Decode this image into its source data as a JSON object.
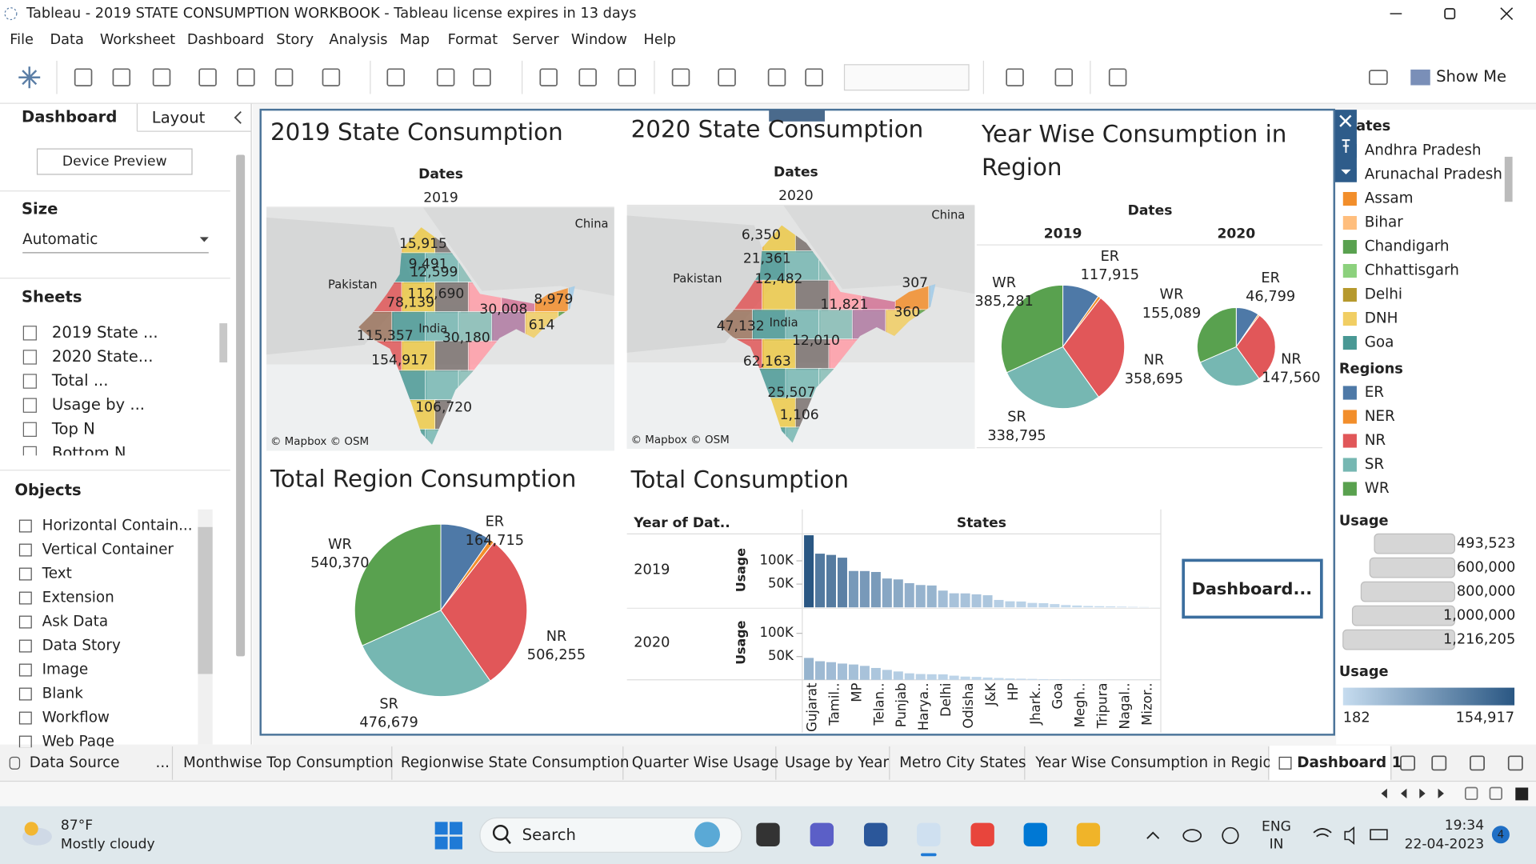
{
  "window": {
    "title": "Tableau - 2019 STATE CONSUMPTION WORKBOOK - Tableau license expires in 13 days"
  },
  "menu": [
    "File",
    "Data",
    "Worksheet",
    "Dashboard",
    "Story",
    "Analysis",
    "Map",
    "Format",
    "Server",
    "Window",
    "Help"
  ],
  "toolbar": {
    "show_me": "Show Me"
  },
  "side_panel": {
    "tabs": [
      "Dashboard",
      "Layout"
    ],
    "device_preview": "Device Preview",
    "size": {
      "heading": "Size",
      "value": "Automatic"
    },
    "sheets": {
      "heading": "Sheets",
      "items": [
        "2019 State ...",
        "2020 State...",
        "Total ...",
        "Usage by ...",
        "Top N",
        "Bottom N"
      ]
    },
    "objects": {
      "heading": "Objects",
      "items": [
        "Horizontal Contain...",
        "Vertical Container",
        "Text",
        "Extension",
        "Ask Data",
        "Data Story",
        "Image",
        "Blank",
        "Workflow",
        "Web Page"
      ]
    }
  },
  "dashboard": {
    "map_2019": {
      "title": "2019 State Consumption",
      "header": "Dates",
      "column": "2019",
      "places": [
        "China",
        "Pakistan",
        "India"
      ],
      "labels": [
        "15,915",
        "9,491",
        "12,599",
        "112,690",
        "78,139",
        "30,008",
        "8,979",
        "614",
        "115,357",
        "30,180",
        "154,917",
        "106,720"
      ],
      "attribution": "© Mapbox © OSM"
    },
    "map_2020": {
      "title": "2020 State Consumption",
      "header": "Dates",
      "column": "2020",
      "places": [
        "China",
        "Pakistan",
        "India"
      ],
      "labels": [
        "6,350",
        "21,361",
        "12,482",
        "307",
        "11,821",
        "47,132",
        "360",
        "12,010",
        "62,163",
        "25,507",
        "1,106"
      ],
      "attribution": "© Mapbox © OSM"
    },
    "year_wise": {
      "title_lines": [
        "Year Wise Consumption in",
        "Region"
      ],
      "header": "Dates",
      "pies": [
        {
          "year": "2019",
          "categories": [
            "ER",
            null,
            "NR",
            "SR",
            "WR"
          ],
          "values": [
            117915,
            9000,
            358695,
            338795,
            385281
          ],
          "value_labels": [
            "117,915",
            null,
            "358,695",
            "338,795",
            "385,281"
          ]
        },
        {
          "year": "2020",
          "categories": [
            "ER",
            null,
            "NR",
            null,
            "WR"
          ],
          "values": [
            46799,
            3000,
            147560,
            140000,
            155089
          ],
          "value_labels": [
            "46,799",
            null,
            "147,560",
            null,
            "155,089"
          ]
        }
      ]
    },
    "total_region": {
      "title": "Total Region Consumption",
      "categories": [
        "ER",
        null,
        "NR",
        "SR",
        "WR"
      ],
      "values": [
        164715,
        15000,
        506255,
        476679,
        540370
      ],
      "value_labels": [
        "164,715",
        null,
        "506,255",
        "476,679",
        "540,370"
      ]
    },
    "total_consumption": {
      "title": "Total Consumption",
      "row_header": "Year of Dat..",
      "column_header": "States",
      "axis_label": "Usage",
      "ylim": [
        0,
        160000
      ],
      "yticks": [
        {
          "value": 50000,
          "label": "50K"
        },
        {
          "value": 100000,
          "label": "100K"
        }
      ],
      "categories": [
        "Gujarat",
        null,
        "Tamil..",
        null,
        "MP",
        null,
        "Telan..",
        null,
        "Punjab",
        null,
        "Harya..",
        null,
        "Delhi",
        null,
        "Odisha",
        null,
        "J&K",
        null,
        "HP",
        null,
        "Jhark..",
        null,
        "Goa",
        null,
        "Megh..",
        null,
        "Tripura",
        null,
        "Nagal..",
        null,
        "Mizor..",
        null
      ],
      "rows": [
        {
          "name": "2019",
          "values": [
            154917,
            115357,
            112690,
            106720,
            78139,
            78000,
            76000,
            62000,
            60000,
            52000,
            48000,
            47000,
            36000,
            30180,
            30008,
            28000,
            26000,
            15915,
            13000,
            12599,
            9491,
            8979,
            7000,
            5000,
            4000,
            3000,
            2500,
            2000,
            1500,
            1000,
            614,
            182
          ]
        },
        {
          "name": "2020",
          "values": [
            47132,
            40000,
            38000,
            35000,
            33000,
            30000,
            25507,
            21361,
            18000,
            14000,
            12482,
            12010,
            11821,
            9000,
            7000,
            6350,
            5000,
            4000,
            3000,
            2500,
            2000,
            1500,
            1106,
            900,
            700,
            500,
            400,
            360,
            307,
            250,
            200,
            182
          ]
        }
      ]
    },
    "button": "Dashboard..."
  },
  "legends": {
    "states": {
      "title": "States",
      "items": [
        {
          "name": "Andhra Pradesh",
          "color": "#4e79a7"
        },
        {
          "name": "Arunachal Pradesh",
          "color": "#a0cbe8"
        },
        {
          "name": "Assam",
          "color": "#f28e2b"
        },
        {
          "name": "Bihar",
          "color": "#ffbe7d"
        },
        {
          "name": "Chandigarh",
          "color": "#59a14f"
        },
        {
          "name": "Chhattisgarh",
          "color": "#8cd17d"
        },
        {
          "name": "Delhi",
          "color": "#b6992d"
        },
        {
          "name": "DNH",
          "color": "#f1ce63"
        },
        {
          "name": "Goa",
          "color": "#499894"
        }
      ]
    },
    "regions": {
      "title": "Regions",
      "items": [
        {
          "name": "ER",
          "color": "#4e79a7"
        },
        {
          "name": "NER",
          "color": "#f28e2b"
        },
        {
          "name": "NR",
          "color": "#e15759"
        },
        {
          "name": "SR",
          "color": "#76b7b2"
        },
        {
          "name": "WR",
          "color": "#59a14f"
        }
      ]
    },
    "usage_size": {
      "title": "Usage",
      "values": [
        493523,
        600000,
        800000,
        1000000,
        1216205
      ],
      "value_labels": [
        "493,523",
        "600,000",
        "800,000",
        "1,000,000",
        "1,216,205"
      ]
    },
    "usage_color": {
      "title": "Usage",
      "range": [
        182,
        154917
      ],
      "range_labels": [
        "182",
        "154,917"
      ],
      "colors": [
        "#c6dcef",
        "#2a5783"
      ]
    }
  },
  "sheet_tabs": {
    "data_source": "Data Source",
    "more": "...",
    "tabs": [
      "Monthwise Top Consumption",
      "Regionwise State Consumption",
      "Quarter Wise Usage",
      "Usage by Year",
      "Metro City States",
      "Year Wise Consumption in Region",
      "Dashboard 1"
    ],
    "active_index": 6
  },
  "taskbar": {
    "temperature": "87°F",
    "weather": "Mostly cloudy",
    "search": "Search",
    "language": "ENG",
    "region": "IN",
    "time": "19:34",
    "date": "22-04-2023",
    "notifications": 4
  }
}
